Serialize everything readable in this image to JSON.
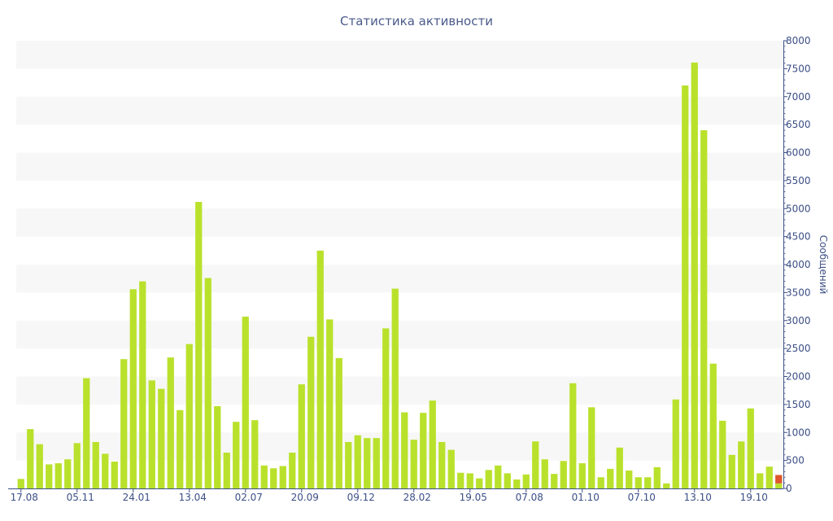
{
  "chart_data": {
    "type": "bar",
    "title": "Статистика активности",
    "ylabel": "Сообщений",
    "xlabel": "",
    "ylim": [
      0,
      8000
    ],
    "y_ticks": [
      0,
      500,
      1000,
      1500,
      2000,
      2500,
      3000,
      3500,
      4000,
      4500,
      5000,
      5500,
      6000,
      6500,
      7000,
      7500,
      8000
    ],
    "x_tick_labels": [
      {
        "label": "17.08",
        "index": 0
      },
      {
        "label": "05.11",
        "index": 6
      },
      {
        "label": "24.01",
        "index": 12
      },
      {
        "label": "13.04",
        "index": 18
      },
      {
        "label": "02.07",
        "index": 24
      },
      {
        "label": "20.09",
        "index": 30
      },
      {
        "label": "09.12",
        "index": 36
      },
      {
        "label": "28.02",
        "index": 42
      },
      {
        "label": "19.05",
        "index": 48
      },
      {
        "label": "07.08",
        "index": 54
      },
      {
        "label": "01.10",
        "index": 60
      },
      {
        "label": "07.10",
        "index": 66
      },
      {
        "label": "13.10",
        "index": 72
      },
      {
        "label": "19.10",
        "index": 78
      }
    ],
    "grid": "horizontal alternating bands",
    "axis_side": "right",
    "colors": {
      "bar": "#b9e12c",
      "current": "#e0562c",
      "band": "#f7f7f7",
      "text": "#3c4f86",
      "axis": "#3c4f86"
    },
    "values": [
      170,
      1060,
      790,
      430,
      450,
      520,
      810,
      1970,
      830,
      620,
      480,
      2310,
      3560,
      3700,
      1930,
      1780,
      2340,
      1400,
      2580,
      5120,
      3760,
      1470,
      640,
      1190,
      3070,
      1220,
      410,
      360,
      400,
      640,
      1860,
      2710,
      4250,
      3020,
      2330,
      830,
      950,
      900,
      900,
      2860,
      3570,
      1360,
      870,
      1350,
      1570,
      830,
      690,
      280,
      270,
      180,
      330,
      410,
      270,
      160,
      250,
      840,
      520,
      260,
      490,
      1880,
      450,
      1450,
      200,
      350,
      730,
      320,
      200,
      200,
      380,
      90,
      1590,
      7200,
      7610,
      6400,
      2230,
      1210,
      600,
      840,
      1430,
      270,
      390
    ],
    "current_period": {
      "total": 240,
      "highlight": 90
    }
  }
}
